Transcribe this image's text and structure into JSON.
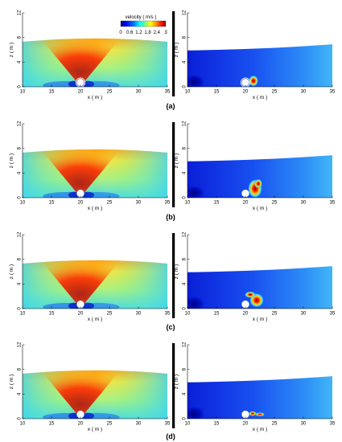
{
  "colorbar": {
    "title": "velocity ( m/s )",
    "ticks": [
      "0",
      "0.6",
      "1.2",
      "1.8",
      "2.4",
      "3"
    ],
    "range": [
      0,
      3
    ],
    "colormap": [
      "#00007f",
      "#0000ff",
      "#007fff",
      "#00ffff",
      "#7fff7f",
      "#ffff00",
      "#ff7f00",
      "#ff0000",
      "#7f0000"
    ]
  },
  "axes": {
    "xlabel": "x ( m )",
    "ylabel": "z ( m )",
    "xticks": [
      "10",
      "15",
      "20",
      "25",
      "30",
      "35"
    ],
    "yticks": [
      "0",
      "4",
      "8",
      "12"
    ],
    "xrange": [
      10,
      35
    ],
    "zrange": [
      0,
      12
    ]
  },
  "rows": [
    {
      "label": "(a)"
    },
    {
      "label": "(b)"
    },
    {
      "label": "(c)"
    },
    {
      "label": "(d)"
    }
  ]
}
